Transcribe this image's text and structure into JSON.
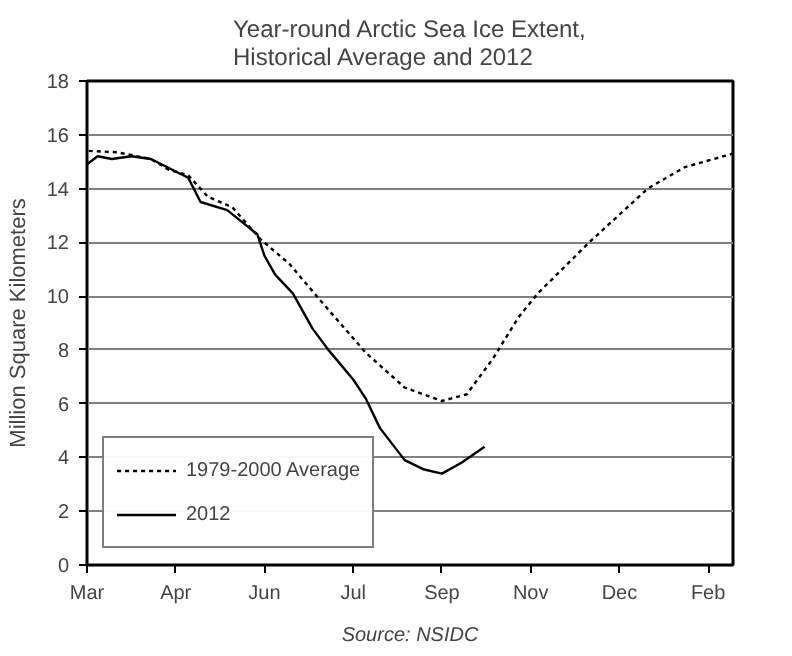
{
  "chart_data": {
    "type": "line",
    "title": "Year-round Arctic Sea Ice Extent,\nHistorical Average and 2012",
    "ylabel": "Million Square Kilometers",
    "annotations": [
      "Source: NSIDC"
    ],
    "xlim": [
      "2012-03-01",
      "2013-02-28"
    ],
    "xticks": [
      {
        "value": "2012-03-01",
        "label": "Mar"
      },
      {
        "value": "2012-04-20",
        "label": "Apr"
      },
      {
        "value": "2012-06-09",
        "label": "Jun"
      },
      {
        "value": "2012-07-29",
        "label": "Jul"
      },
      {
        "value": "2012-09-17",
        "label": "Sep"
      },
      {
        "value": "2012-11-06",
        "label": "Nov"
      },
      {
        "value": "2012-12-26",
        "label": "Dec"
      },
      {
        "value": "2013-02-14",
        "label": "Feb"
      }
    ],
    "ylim": [
      0,
      18
    ],
    "yticks": [
      0,
      2,
      4,
      6,
      8,
      10,
      12,
      14,
      16,
      18
    ],
    "grid": "y",
    "legend": "bottom left",
    "marker": "none",
    "series": [
      {
        "name": "1979-2000 Average",
        "color": "#000000",
        "line_style": "dashed",
        "x": [
          "2012-03-02",
          "2012-03-18",
          "2012-04-06",
          "2012-04-16",
          "2012-04-27",
          "2012-05-08",
          "2012-05-22",
          "2012-06-07",
          "2012-06-23",
          "2012-07-11",
          "2012-08-05",
          "2012-08-27",
          "2012-09-17",
          "2012-10-01",
          "2012-10-16",
          "2012-10-30",
          "2012-11-10",
          "2012-12-09",
          "2013-01-11",
          "2013-02-01",
          "2013-02-28"
        ],
        "values": [
          15.4,
          15.35,
          15.1,
          14.7,
          14.5,
          13.7,
          13.3,
          12.1,
          11.2,
          9.8,
          7.9,
          6.6,
          6.1,
          6.35,
          7.7,
          9.2,
          10.1,
          12.0,
          14.0,
          14.8,
          15.3
        ]
      },
      {
        "name": "2012",
        "color": "#000000",
        "line_style": "solid",
        "x": [
          "2012-03-01",
          "2012-03-07",
          "2012-03-15",
          "2012-03-26",
          "2012-04-06",
          "2012-04-27",
          "2012-05-04",
          "2012-05-19",
          "2012-06-05",
          "2012-06-09",
          "2012-06-15",
          "2012-06-25",
          "2012-07-06",
          "2012-07-15",
          "2012-07-29",
          "2012-08-05",
          "2012-08-13",
          "2012-08-27",
          "2012-09-07",
          "2012-09-17",
          "2012-09-28",
          "2012-10-11"
        ],
        "values": [
          14.9,
          15.2,
          15.1,
          15.2,
          15.1,
          14.4,
          13.5,
          13.2,
          12.3,
          11.5,
          10.8,
          10.1,
          8.8,
          8.0,
          6.9,
          6.2,
          5.1,
          3.9,
          3.55,
          3.4,
          3.8,
          4.4
        ]
      }
    ]
  }
}
